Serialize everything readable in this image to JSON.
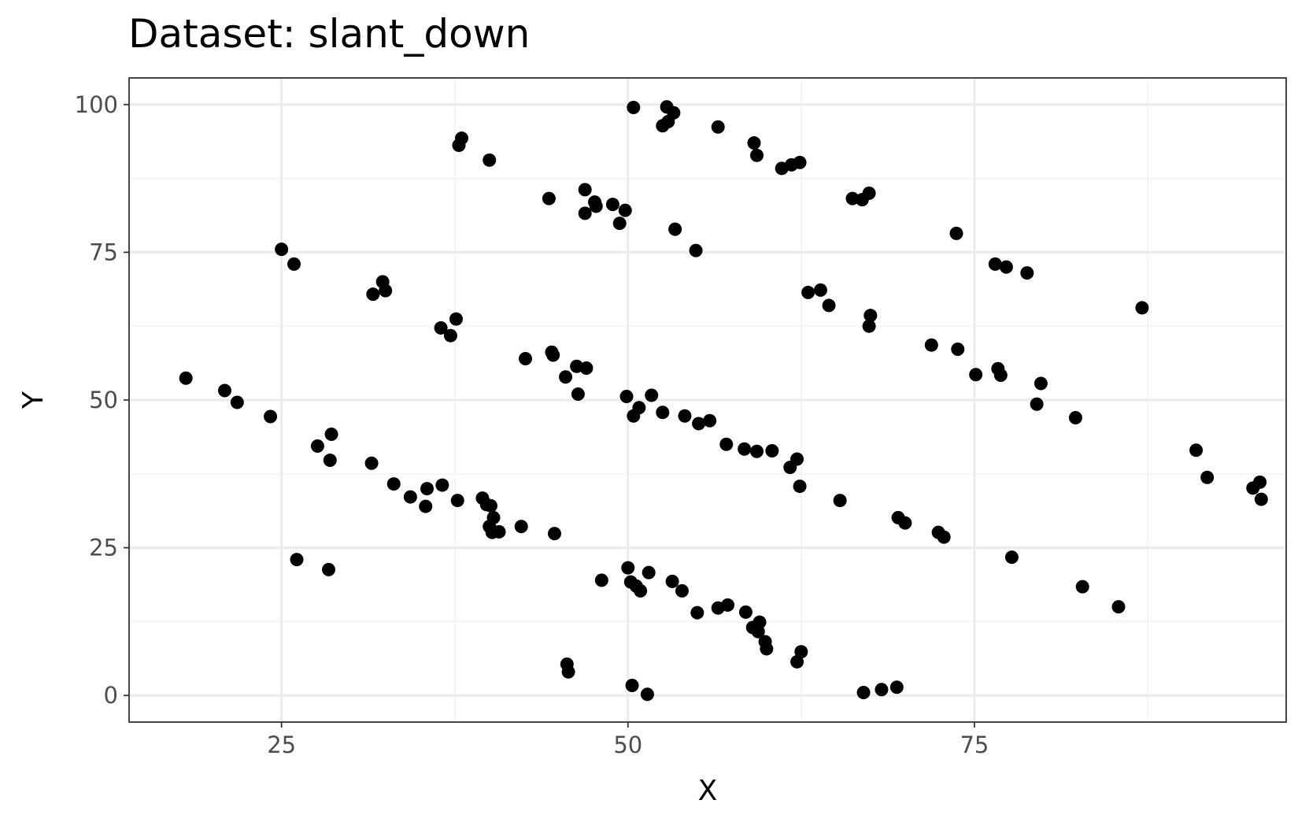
{
  "chart_data": {
    "type": "scatter",
    "title": "Dataset: slant_down",
    "xlabel": "X",
    "ylabel": "Y",
    "xlim": [
      14,
      97.5
    ],
    "ylim": [
      -4.5,
      104.5
    ],
    "x_ticks": [
      25,
      50,
      75
    ],
    "y_ticks": [
      0,
      25,
      50,
      75,
      100
    ],
    "grid": true,
    "colors": {
      "point": "#000000",
      "grid_major": "#ebebeb",
      "grid_minor": "#f3f3f3",
      "panel_border": "#333333",
      "background": "#ffffff"
    },
    "points": [
      {
        "x": 18.1,
        "y": 53.7
      },
      {
        "x": 20.9,
        "y": 51.6
      },
      {
        "x": 21.8,
        "y": 49.6
      },
      {
        "x": 24.2,
        "y": 47.2
      },
      {
        "x": 25.0,
        "y": 75.5
      },
      {
        "x": 25.9,
        "y": 73.0
      },
      {
        "x": 26.1,
        "y": 23.0
      },
      {
        "x": 27.6,
        "y": 42.2
      },
      {
        "x": 28.4,
        "y": 21.3
      },
      {
        "x": 28.5,
        "y": 39.8
      },
      {
        "x": 28.6,
        "y": 44.2
      },
      {
        "x": 31.6,
        "y": 67.9
      },
      {
        "x": 31.5,
        "y": 39.3
      },
      {
        "x": 32.3,
        "y": 70.0
      },
      {
        "x": 32.5,
        "y": 68.5
      },
      {
        "x": 33.1,
        "y": 35.8
      },
      {
        "x": 34.3,
        "y": 33.6
      },
      {
        "x": 35.4,
        "y": 32.0
      },
      {
        "x": 35.5,
        "y": 35.0
      },
      {
        "x": 36.5,
        "y": 62.2
      },
      {
        "x": 36.6,
        "y": 35.6
      },
      {
        "x": 37.2,
        "y": 60.9
      },
      {
        "x": 37.6,
        "y": 63.7
      },
      {
        "x": 37.7,
        "y": 33.0
      },
      {
        "x": 37.8,
        "y": 93.1
      },
      {
        "x": 38.0,
        "y": 94.3
      },
      {
        "x": 39.5,
        "y": 33.4
      },
      {
        "x": 39.8,
        "y": 32.3
      },
      {
        "x": 40.0,
        "y": 90.6
      },
      {
        "x": 40.1,
        "y": 32.1
      },
      {
        "x": 40.0,
        "y": 28.6
      },
      {
        "x": 40.3,
        "y": 30.1
      },
      {
        "x": 40.2,
        "y": 27.6
      },
      {
        "x": 40.7,
        "y": 27.7
      },
      {
        "x": 42.3,
        "y": 28.6
      },
      {
        "x": 42.6,
        "y": 57.0
      },
      {
        "x": 44.3,
        "y": 84.1
      },
      {
        "x": 44.5,
        "y": 58.1
      },
      {
        "x": 44.6,
        "y": 57.6
      },
      {
        "x": 44.7,
        "y": 27.4
      },
      {
        "x": 45.5,
        "y": 53.9
      },
      {
        "x": 45.6,
        "y": 5.3
      },
      {
        "x": 45.7,
        "y": 4.0
      },
      {
        "x": 46.3,
        "y": 55.7
      },
      {
        "x": 46.4,
        "y": 51.0
      },
      {
        "x": 46.9,
        "y": 85.6
      },
      {
        "x": 47.0,
        "y": 55.4
      },
      {
        "x": 46.9,
        "y": 81.6
      },
      {
        "x": 47.6,
        "y": 83.5
      },
      {
        "x": 47.7,
        "y": 82.8
      },
      {
        "x": 48.1,
        "y": 19.5
      },
      {
        "x": 48.9,
        "y": 83.1
      },
      {
        "x": 49.4,
        "y": 79.9
      },
      {
        "x": 49.8,
        "y": 82.1
      },
      {
        "x": 49.9,
        "y": 50.6
      },
      {
        "x": 50.0,
        "y": 21.6
      },
      {
        "x": 50.2,
        "y": 19.2
      },
      {
        "x": 50.3,
        "y": 1.7
      },
      {
        "x": 50.4,
        "y": 47.3
      },
      {
        "x": 50.4,
        "y": 99.5
      },
      {
        "x": 50.6,
        "y": 18.5
      },
      {
        "x": 50.8,
        "y": 48.7
      },
      {
        "x": 50.9,
        "y": 17.7
      },
      {
        "x": 51.4,
        "y": 0.2
      },
      {
        "x": 51.5,
        "y": 20.8
      },
      {
        "x": 51.7,
        "y": 50.8
      },
      {
        "x": 52.5,
        "y": 47.9
      },
      {
        "x": 52.5,
        "y": 96.4
      },
      {
        "x": 52.8,
        "y": 99.6
      },
      {
        "x": 52.9,
        "y": 97.1
      },
      {
        "x": 53.2,
        "y": 19.3
      },
      {
        "x": 53.3,
        "y": 98.6
      },
      {
        "x": 53.4,
        "y": 78.9
      },
      {
        "x": 53.9,
        "y": 17.7
      },
      {
        "x": 54.1,
        "y": 47.3
      },
      {
        "x": 54.9,
        "y": 75.3
      },
      {
        "x": 55.0,
        "y": 14.0
      },
      {
        "x": 55.1,
        "y": 46.0
      },
      {
        "x": 55.9,
        "y": 46.5
      },
      {
        "x": 56.5,
        "y": 96.2
      },
      {
        "x": 56.5,
        "y": 14.8
      },
      {
        "x": 57.2,
        "y": 15.3
      },
      {
        "x": 57.1,
        "y": 42.5
      },
      {
        "x": 58.4,
        "y": 41.7
      },
      {
        "x": 58.5,
        "y": 14.1
      },
      {
        "x": 59.0,
        "y": 11.5
      },
      {
        "x": 59.1,
        "y": 93.5
      },
      {
        "x": 59.3,
        "y": 91.4
      },
      {
        "x": 59.3,
        "y": 41.3
      },
      {
        "x": 59.4,
        "y": 10.8
      },
      {
        "x": 59.5,
        "y": 12.4
      },
      {
        "x": 59.9,
        "y": 9.1
      },
      {
        "x": 60.0,
        "y": 7.9
      },
      {
        "x": 60.4,
        "y": 41.4
      },
      {
        "x": 61.1,
        "y": 89.2
      },
      {
        "x": 61.7,
        "y": 38.6
      },
      {
        "x": 61.8,
        "y": 89.8
      },
      {
        "x": 62.2,
        "y": 5.7
      },
      {
        "x": 62.2,
        "y": 40.0
      },
      {
        "x": 62.4,
        "y": 90.2
      },
      {
        "x": 62.4,
        "y": 35.4
      },
      {
        "x": 62.5,
        "y": 7.4
      },
      {
        "x": 63.0,
        "y": 68.2
      },
      {
        "x": 63.9,
        "y": 68.6
      },
      {
        "x": 64.5,
        "y": 66.0
      },
      {
        "x": 65.3,
        "y": 33.0
      },
      {
        "x": 66.2,
        "y": 84.1
      },
      {
        "x": 66.9,
        "y": 83.9
      },
      {
        "x": 67.0,
        "y": 0.5
      },
      {
        "x": 67.4,
        "y": 85.0
      },
      {
        "x": 67.5,
        "y": 64.3
      },
      {
        "x": 67.4,
        "y": 62.5
      },
      {
        "x": 68.3,
        "y": 1.0
      },
      {
        "x": 69.4,
        "y": 1.4
      },
      {
        "x": 69.5,
        "y": 30.1
      },
      {
        "x": 70.0,
        "y": 29.2
      },
      {
        "x": 71.9,
        "y": 59.3
      },
      {
        "x": 72.4,
        "y": 27.6
      },
      {
        "x": 72.8,
        "y": 26.8
      },
      {
        "x": 73.7,
        "y": 78.2
      },
      {
        "x": 73.8,
        "y": 58.6
      },
      {
        "x": 75.1,
        "y": 54.3
      },
      {
        "x": 76.5,
        "y": 73.0
      },
      {
        "x": 76.7,
        "y": 55.3
      },
      {
        "x": 76.9,
        "y": 54.2
      },
      {
        "x": 77.3,
        "y": 72.5
      },
      {
        "x": 77.7,
        "y": 23.4
      },
      {
        "x": 78.8,
        "y": 71.5
      },
      {
        "x": 79.5,
        "y": 49.3
      },
      {
        "x": 79.8,
        "y": 52.8
      },
      {
        "x": 82.3,
        "y": 47.0
      },
      {
        "x": 82.8,
        "y": 18.4
      },
      {
        "x": 85.4,
        "y": 15.0
      },
      {
        "x": 87.1,
        "y": 65.6
      },
      {
        "x": 91.0,
        "y": 41.5
      },
      {
        "x": 91.8,
        "y": 36.9
      },
      {
        "x": 95.1,
        "y": 35.1
      },
      {
        "x": 95.6,
        "y": 36.1
      },
      {
        "x": 95.7,
        "y": 33.2
      }
    ]
  }
}
